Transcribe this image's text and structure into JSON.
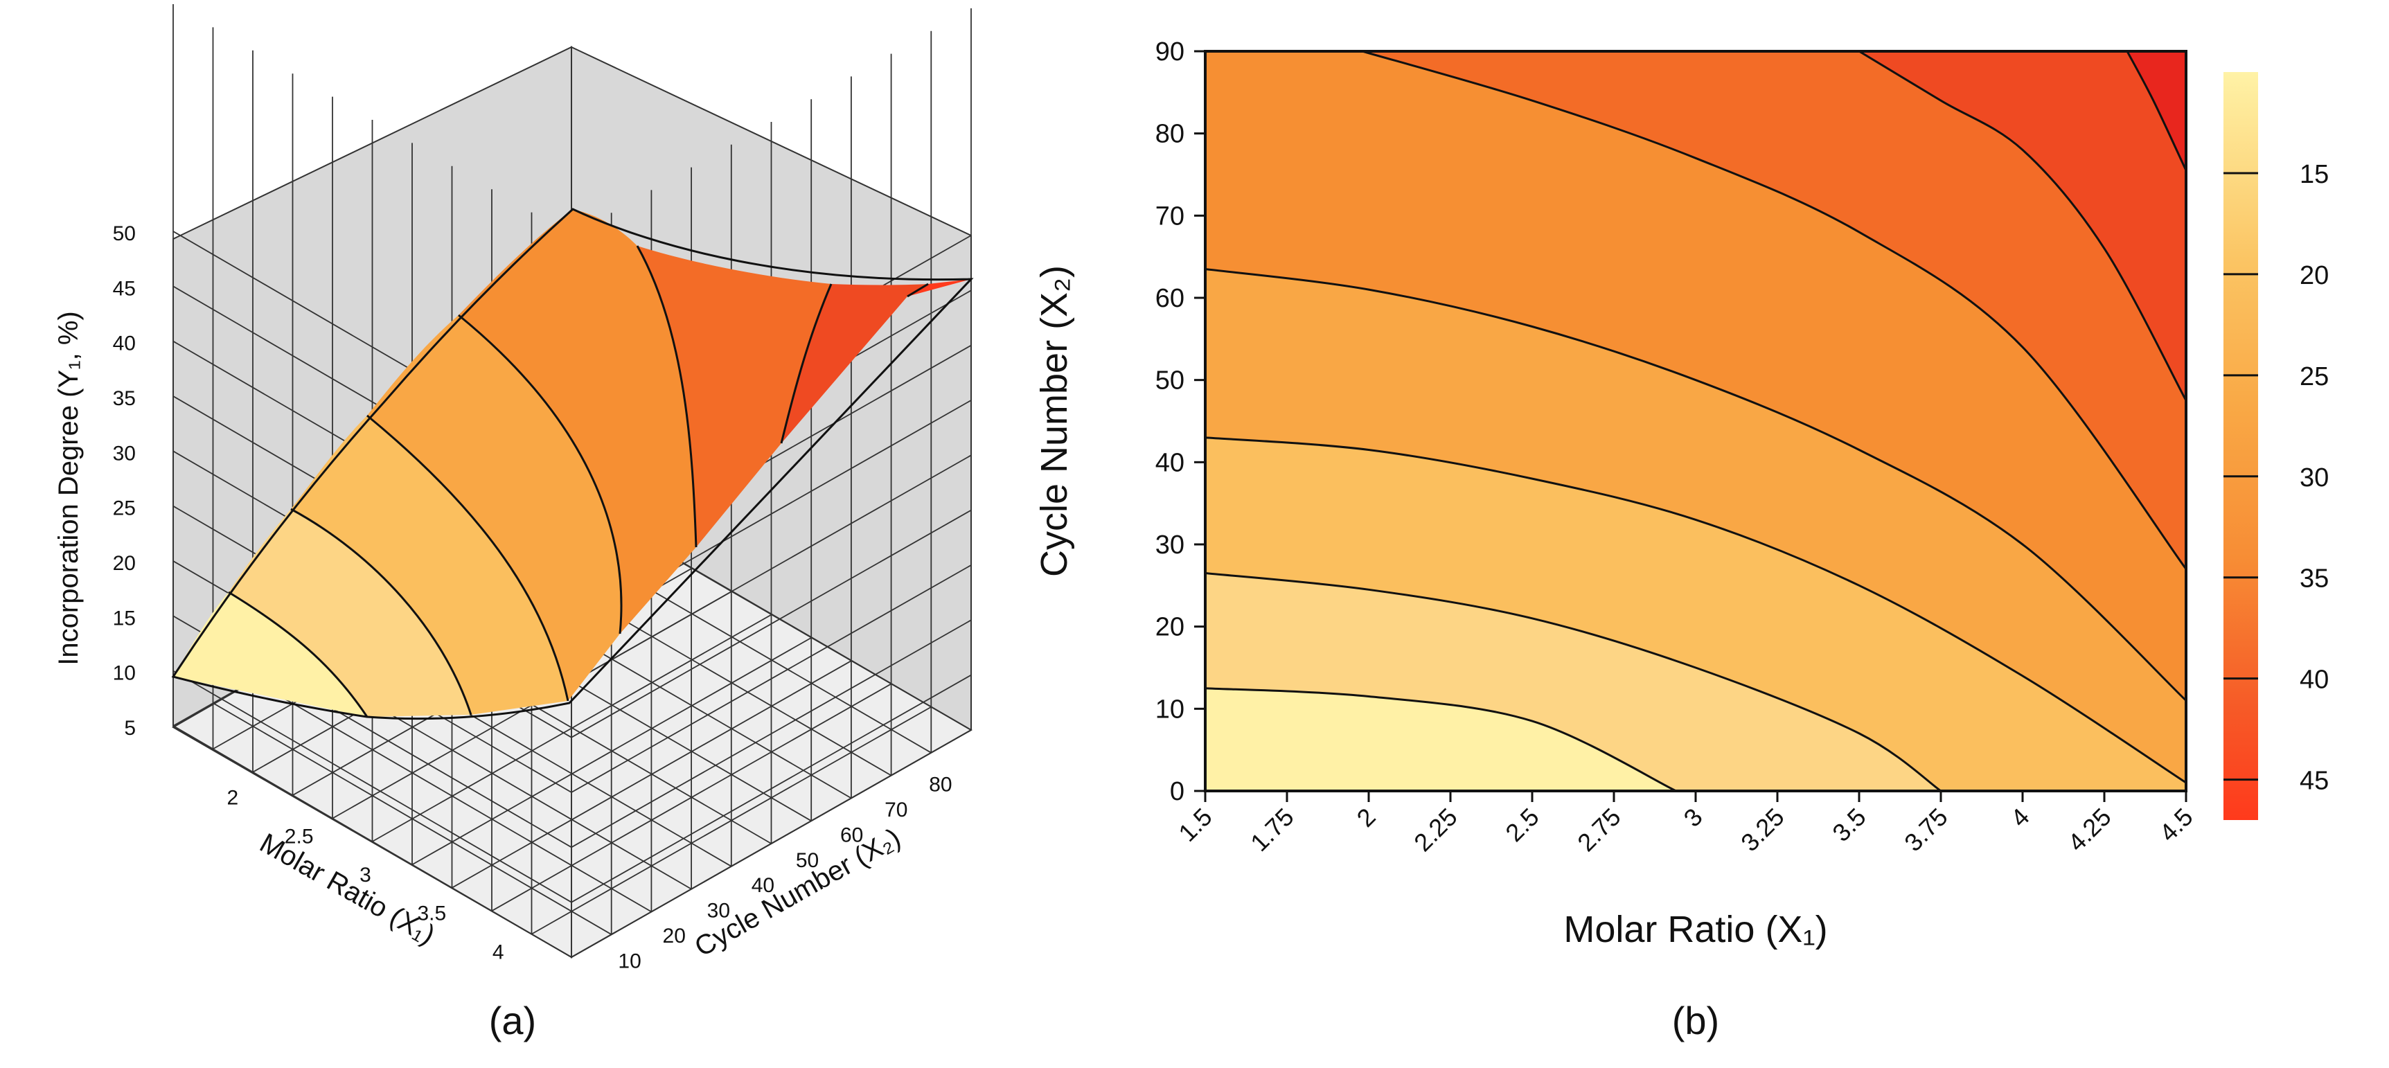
{
  "chart_data": [
    {
      "type": "surface3d",
      "panel_label": "(a)",
      "title": "",
      "xlabel": "Molar Ratio (X₁)",
      "ylabel": "Cycle Number (X₂)",
      "zlabel": "Incorporation Degree (Y₁, %)",
      "x_ticks": [
        "2",
        "2.5",
        "3",
        "3.5",
        "4"
      ],
      "y_ticks": [
        "10",
        "20",
        "30",
        "40",
        "50",
        "60",
        "70",
        "80"
      ],
      "z_ticks": [
        "5",
        "10",
        "15",
        "20",
        "25",
        "30",
        "35",
        "40",
        "45",
        "50"
      ],
      "xlim": [
        1.5,
        4.5
      ],
      "ylim": [
        0,
        90
      ],
      "zlim": [
        5,
        50
      ],
      "surface_corners": [
        {
          "x": 1.5,
          "y": 0,
          "z": 10
        },
        {
          "x": 4.5,
          "y": 0,
          "z": 26
        },
        {
          "x": 1.5,
          "y": 90,
          "z": 31
        },
        {
          "x": 4.5,
          "y": 90,
          "z": 47
        }
      ],
      "contour_levels": [
        15,
        20,
        25,
        30,
        35,
        40,
        45
      ]
    },
    {
      "type": "contour",
      "panel_label": "(b)",
      "title": "",
      "xlabel": "Molar Ratio (X₁)",
      "ylabel": "Cycle Number (X₂)",
      "x_ticks": [
        "1.5",
        "1.75",
        "2",
        "2.25",
        "2.5",
        "2.75",
        "3",
        "3.25",
        "3.5",
        "3.75",
        "4",
        "4.25",
        "4.5"
      ],
      "y_ticks": [
        "0",
        "10",
        "20",
        "30",
        "40",
        "50",
        "60",
        "70",
        "80",
        "90"
      ],
      "xlim": [
        1.5,
        4.5
      ],
      "ylim": [
        0,
        90
      ],
      "levels": [
        15,
        20,
        25,
        30,
        35,
        40,
        45
      ],
      "colorbar_ticks": [
        "15",
        "20",
        "25",
        "30",
        "35",
        "40",
        "45"
      ],
      "colormap": [
        "#fff1a6",
        "#fdd585",
        "#fbbf5e",
        "#f9a745",
        "#f68f33",
        "#f36c27",
        "#ef4a22",
        "#e8261e"
      ],
      "contour_lines": [
        {
          "level": 15,
          "points": [
            [
              1.5,
              12.5
            ],
            [
              2.0,
              11.5
            ],
            [
              2.5,
              8.5
            ],
            [
              2.94,
              0
            ]
          ]
        },
        {
          "level": 20,
          "points": [
            [
              1.5,
              26.5
            ],
            [
              2.0,
              24.5
            ],
            [
              2.5,
              21
            ],
            [
              3.0,
              15
            ],
            [
              3.5,
              7
            ],
            [
              3.75,
              0
            ]
          ]
        },
        {
          "level": 25,
          "points": [
            [
              1.5,
              43
            ],
            [
              2.0,
              41.5
            ],
            [
              2.5,
              38
            ],
            [
              3.0,
              33
            ],
            [
              3.5,
              25
            ],
            [
              4.0,
              14
            ],
            [
              4.5,
              1
            ]
          ]
        },
        {
          "level": 30,
          "points": [
            [
              1.5,
              63.5
            ],
            [
              2.0,
              61
            ],
            [
              2.5,
              56.5
            ],
            [
              3.0,
              50
            ],
            [
              3.5,
              41.5
            ],
            [
              4.0,
              30
            ],
            [
              4.5,
              11
            ]
          ]
        },
        {
          "level": 35,
          "points": [
            [
              1.98,
              90
            ],
            [
              2.5,
              84
            ],
            [
              3.0,
              77
            ],
            [
              3.5,
              68
            ],
            [
              4.0,
              54
            ],
            [
              4.5,
              27
            ]
          ]
        },
        {
          "level": 40,
          "points": [
            [
              3.5,
              90
            ],
            [
              3.75,
              84
            ],
            [
              4.0,
              78
            ],
            [
              4.25,
              66
            ],
            [
              4.5,
              47.5
            ]
          ]
        },
        {
          "level": 45,
          "points": [
            [
              4.32,
              90
            ],
            [
              4.4,
              84
            ],
            [
              4.5,
              75.5
            ]
          ]
        }
      ]
    }
  ],
  "colors": {
    "lightest": "#fff1a6",
    "darkest": "#e8261e",
    "wall": "#d8d8d8",
    "floor": "#eeeeee"
  }
}
